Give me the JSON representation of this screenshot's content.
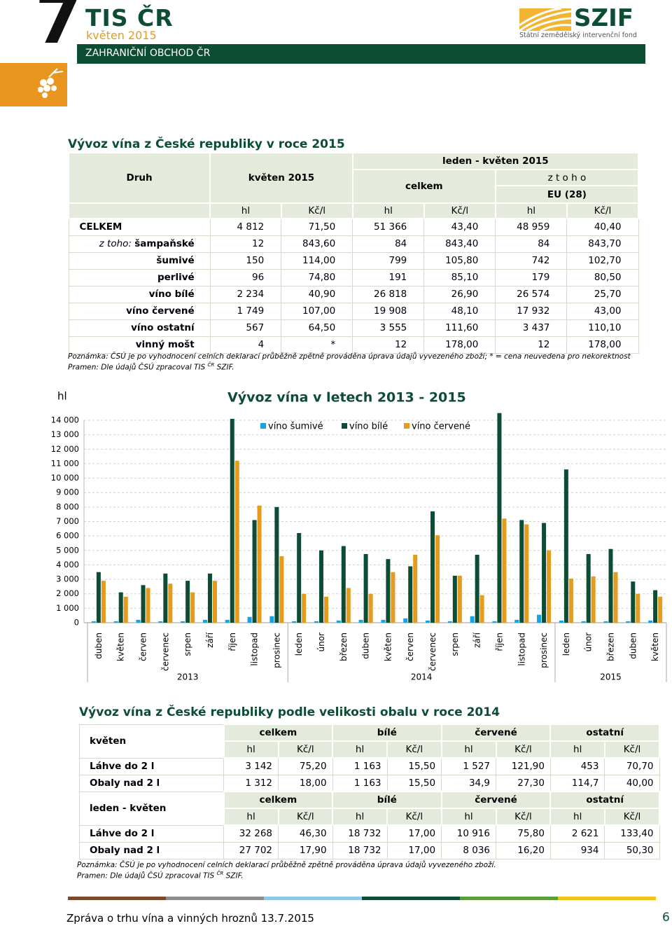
{
  "header": {
    "number": "7",
    "brand": "TIS ČR",
    "issue": "květen 2015",
    "section": "ZAHRANIČNÍ OBCHOD ČR",
    "logo": "SZIF",
    "logo_sub": "Státní zemědělský intervenční fond"
  },
  "table1": {
    "title": "Vývoz vína z České republiky v roce 2015",
    "head": {
      "druh": "Druh",
      "may": "květen 2015",
      "period": "leden - květen 2015",
      "total": "celkem",
      "ofwhich": "z t o h o",
      "eu": "EU (28)"
    },
    "units": [
      "hl",
      "Kč/l",
      "hl",
      "Kč/l",
      "hl",
      "Kč/l"
    ],
    "rows": [
      {
        "label": "CELKEM",
        "cells": [
          "4 812",
          "71,50",
          "51 366",
          "43,40",
          "48 959",
          "40,40"
        ]
      },
      {
        "prefix": "z toho: ",
        "label": "šampaňské",
        "cells": [
          "12",
          "843,60",
          "84",
          "843,40",
          "84",
          "843,70"
        ]
      },
      {
        "label": "šumivé",
        "cells": [
          "150",
          "114,00",
          "799",
          "105,80",
          "742",
          "102,70"
        ]
      },
      {
        "label": "perlivé",
        "cells": [
          "96",
          "74,80",
          "191",
          "85,10",
          "179",
          "80,50"
        ]
      },
      {
        "label": "víno bílé",
        "cells": [
          "2 234",
          "40,90",
          "26 818",
          "26,90",
          "26 574",
          "25,70"
        ]
      },
      {
        "label": "víno červené",
        "cells": [
          "1 749",
          "107,00",
          "19 908",
          "48,10",
          "17 932",
          "43,00"
        ]
      },
      {
        "label": "víno ostatní",
        "cells": [
          "567",
          "64,50",
          "3 555",
          "111,60",
          "3 437",
          "110,10"
        ]
      },
      {
        "label": "vinný mošt",
        "cells": [
          "4",
          "*",
          "12",
          "178,00",
          "12",
          "178,00"
        ]
      }
    ],
    "note": "Poznámka: ČSÚ je po vyhodnocení celních deklarací průběžně zpětně prováděna úprava údajů vyvezeného zboží; * = cena neuvedena pro nekorektnost",
    "source": "Pramen: Dle údajů ČSÚ zpracoval TIS ",
    "source_sup": "ČR",
    "source_end": " SZIF."
  },
  "chart_data": {
    "type": "bar",
    "title": "Vývoz vína v letech 2013 - 2015",
    "y_label": "hl",
    "categories": [
      "duben",
      "květen",
      "červen",
      "červenec",
      "srpen",
      "září",
      "říjen",
      "listopad",
      "prosinec",
      "leden",
      "únor",
      "březen",
      "duben",
      "květen",
      "červen",
      "červenec",
      "srpen",
      "září",
      "říjen",
      "listopad",
      "prosinec",
      "leden",
      "únor",
      "březen",
      "duben",
      "květen"
    ],
    "years": [
      "2013",
      "2014",
      "2015"
    ],
    "series": [
      {
        "name": "víno šumivé",
        "color": "#1ba1e2",
        "values": [
          100,
          100,
          200,
          100,
          100,
          200,
          200,
          400,
          450,
          100,
          100,
          150,
          200,
          200,
          300,
          150,
          100,
          450,
          100,
          200,
          550,
          150,
          100,
          100,
          100,
          150
        ]
      },
      {
        "name": "víno bílé",
        "color": "#0d4d33",
        "values": [
          3500,
          2100,
          2600,
          3400,
          2900,
          3400,
          14100,
          7100,
          8000,
          6200,
          5000,
          5300,
          4750,
          4400,
          3900,
          7700,
          3250,
          4700,
          14500,
          7100,
          6900,
          10600,
          4750,
          5100,
          2850,
          2250
        ]
      },
      {
        "name": "víno červené",
        "color": "#e59b1e",
        "values": [
          2900,
          1800,
          2400,
          2700,
          2100,
          2900,
          11200,
          8100,
          4600,
          2000,
          1800,
          2400,
          2000,
          3500,
          4700,
          6050,
          3250,
          1900,
          7200,
          6800,
          5000,
          3050,
          3200,
          3500,
          2000,
          1800
        ]
      }
    ],
    "ylim": [
      0,
      14000
    ],
    "yticks": [
      0,
      {
        "value": 1000,
        "label": "1 000"
      },
      {
        "value": 2000,
        "label": "2 000"
      },
      {
        "value": 3000,
        "label": "3 000"
      },
      {
        "value": 4000,
        "label": "4 000"
      },
      {
        "value": 5000,
        "label": "5 000"
      },
      {
        "value": 6000,
        "label": "6 000"
      },
      {
        "value": 7000,
        "label": "7 000"
      },
      {
        "value": 8000,
        "label": "8 000"
      },
      {
        "value": 9000,
        "label": "9 000"
      },
      {
        "value": 10000,
        "label": "10 000"
      },
      {
        "value": 11000,
        "label": "11 000"
      },
      {
        "value": 12000,
        "label": "12 000"
      },
      {
        "value": 13000,
        "label": "13 000"
      },
      {
        "value": 14000,
        "label": "14 000"
      }
    ],
    "grid": true,
    "legend": "top"
  },
  "table2": {
    "title": "Vývoz vína z České republiky podle velikosti obalu v roce 2014",
    "blocks": [
      {
        "label": "květen",
        "groups": [
          "celkem",
          "bílé",
          "červené",
          "ostatní"
        ],
        "units": [
          "hl",
          "Kč/l",
          "hl",
          "Kč/l",
          "hl",
          "Kč/l",
          "hl",
          "Kč/l"
        ],
        "rows": [
          {
            "label": "Láhve do 2 l",
            "cells": [
              "3 142",
              "75,20",
              "1 163",
              "15,50",
              "1 527",
              "121,90",
              "453",
              "70,70"
            ]
          },
          {
            "label": "Obaly nad 2 l",
            "cells": [
              "1 312",
              "18,00",
              "1 163",
              "15,50",
              "34,9",
              "27,30",
              "114,7",
              "40,00"
            ]
          }
        ]
      },
      {
        "label": "leden - květen",
        "groups": [
          "celkem",
          "bílé",
          "červené",
          "ostatní"
        ],
        "units": [
          "hl",
          "Kč/l",
          "hl",
          "Kč/l",
          "hl",
          "Kč/l",
          "hl",
          "Kč/l"
        ],
        "rows": [
          {
            "label": "Láhve do 2 l",
            "cells": [
              "32 268",
              "46,30",
              "18 732",
              "17,00",
              "10 916",
              "75,80",
              "2 621",
              "133,40"
            ]
          },
          {
            "label": "Obaly nad 2 l",
            "cells": [
              "27 702",
              "17,90",
              "18 732",
              "17,00",
              "8 036",
              "16,20",
              "934",
              "50,30"
            ]
          }
        ]
      }
    ],
    "note": "Poznámka: ČSÚ je po vyhodnocení celních deklarací průběžně zpětně prováděna úprava údajů vyvezeného zboží.",
    "source": "Pramen: Dle údajů ČSÚ zpracoval TIS ",
    "source_sup": "ČR",
    "source_end": " SZIF."
  },
  "footer": {
    "text": "Zpráva o trhu vína a vinných hroznů 13.7.2015",
    "page": "6"
  }
}
